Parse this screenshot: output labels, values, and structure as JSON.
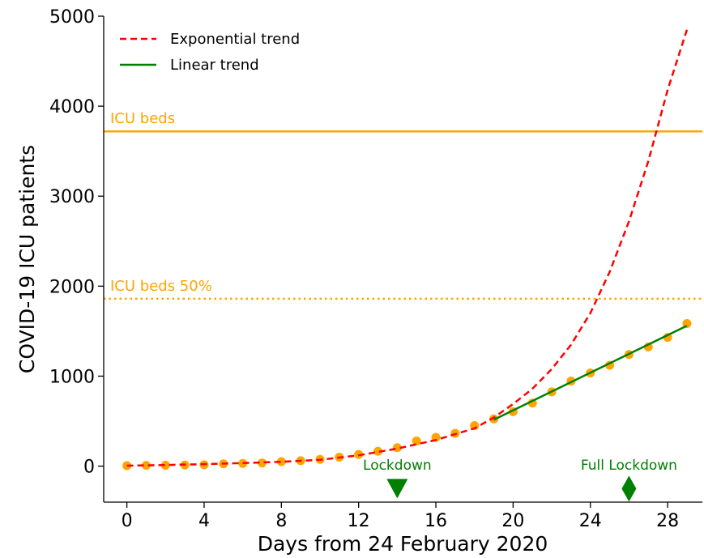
{
  "chart_data": {
    "type": "scatter",
    "xlabel": "Days from 24 February 2020",
    "ylabel": "COVID-19 ICU patients",
    "xlim": [
      -1.2,
      29.8
    ],
    "ylim": [
      -400,
      5000
    ],
    "xticks": [
      0,
      4,
      8,
      12,
      16,
      20,
      24,
      28
    ],
    "yticks": [
      0,
      1000,
      2000,
      3000,
      4000,
      5000
    ],
    "grid": false,
    "legend_position": "top-left",
    "points": {
      "color": "#ffa500",
      "x": [
        0,
        1,
        2,
        3,
        4,
        5,
        6,
        7,
        8,
        9,
        10,
        11,
        12,
        13,
        14,
        15,
        16,
        17,
        18,
        19,
        20,
        21,
        22,
        23,
        24,
        25,
        26,
        27,
        28,
        29
      ],
      "y": [
        5,
        8,
        10,
        12,
        15,
        25,
        30,
        35,
        50,
        60,
        75,
        100,
        130,
        165,
        205,
        280,
        320,
        365,
        450,
        525,
        605,
        700,
        825,
        945,
        1035,
        1120,
        1240,
        1325,
        1430,
        1585
      ]
    },
    "series": [
      {
        "name": "Exponential trend",
        "style": "dashed",
        "color": "#ff0000",
        "x": [
          0,
          2,
          4,
          6,
          8,
          10,
          12,
          14,
          16,
          18,
          19,
          20,
          21,
          22,
          23,
          24,
          25,
          26,
          27,
          28,
          29
        ],
        "y": [
          5,
          12,
          22,
          34,
          48,
          70,
          120,
          195,
          290,
          420,
          540,
          690,
          860,
          1080,
          1350,
          1700,
          2160,
          2720,
          3390,
          4180,
          4850
        ]
      },
      {
        "name": "Linear trend",
        "style": "solid",
        "color": "#008000",
        "x": [
          19,
          29
        ],
        "y": [
          515,
          1560
        ]
      }
    ],
    "reference_lines": [
      {
        "label": "ICU beds",
        "value": 3720,
        "style": "solid",
        "color": "#ffa500"
      },
      {
        "label": "ICU beds 50%",
        "value": 1860,
        "style": "dotted",
        "color": "#ffa500"
      }
    ],
    "annotations": [
      {
        "label": "Lockdown",
        "x": 14,
        "marker": "triangle-down",
        "color": "#008000"
      },
      {
        "label": "Full Lockdown",
        "x": 26,
        "marker": "diamond",
        "color": "#008000"
      }
    ]
  }
}
